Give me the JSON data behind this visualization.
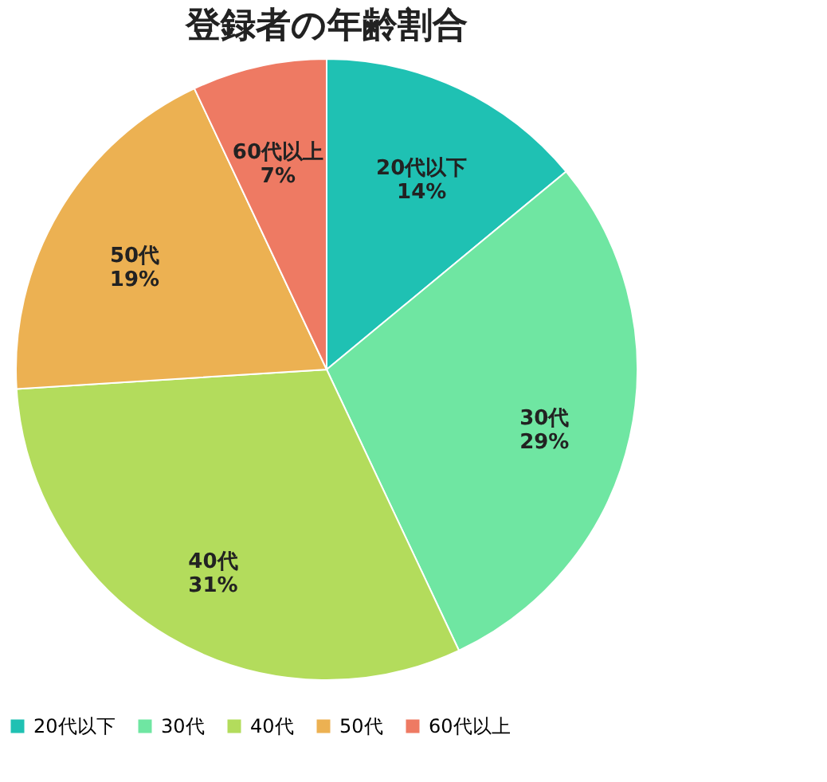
{
  "chart_data": {
    "type": "pie",
    "title": "登録者の年齢割合",
    "categories": [
      "20代以下",
      "30代",
      "40代",
      "50代",
      "60代以上"
    ],
    "values": [
      14,
      29,
      31,
      19,
      7
    ],
    "value_labels": [
      "14%",
      "29%",
      "31%",
      "19%",
      "7%"
    ],
    "colors": [
      "#1fc1b3",
      "#6fe6a2",
      "#b3dc5c",
      "#ecb152",
      "#ee7a63"
    ],
    "legend": "bottom"
  }
}
